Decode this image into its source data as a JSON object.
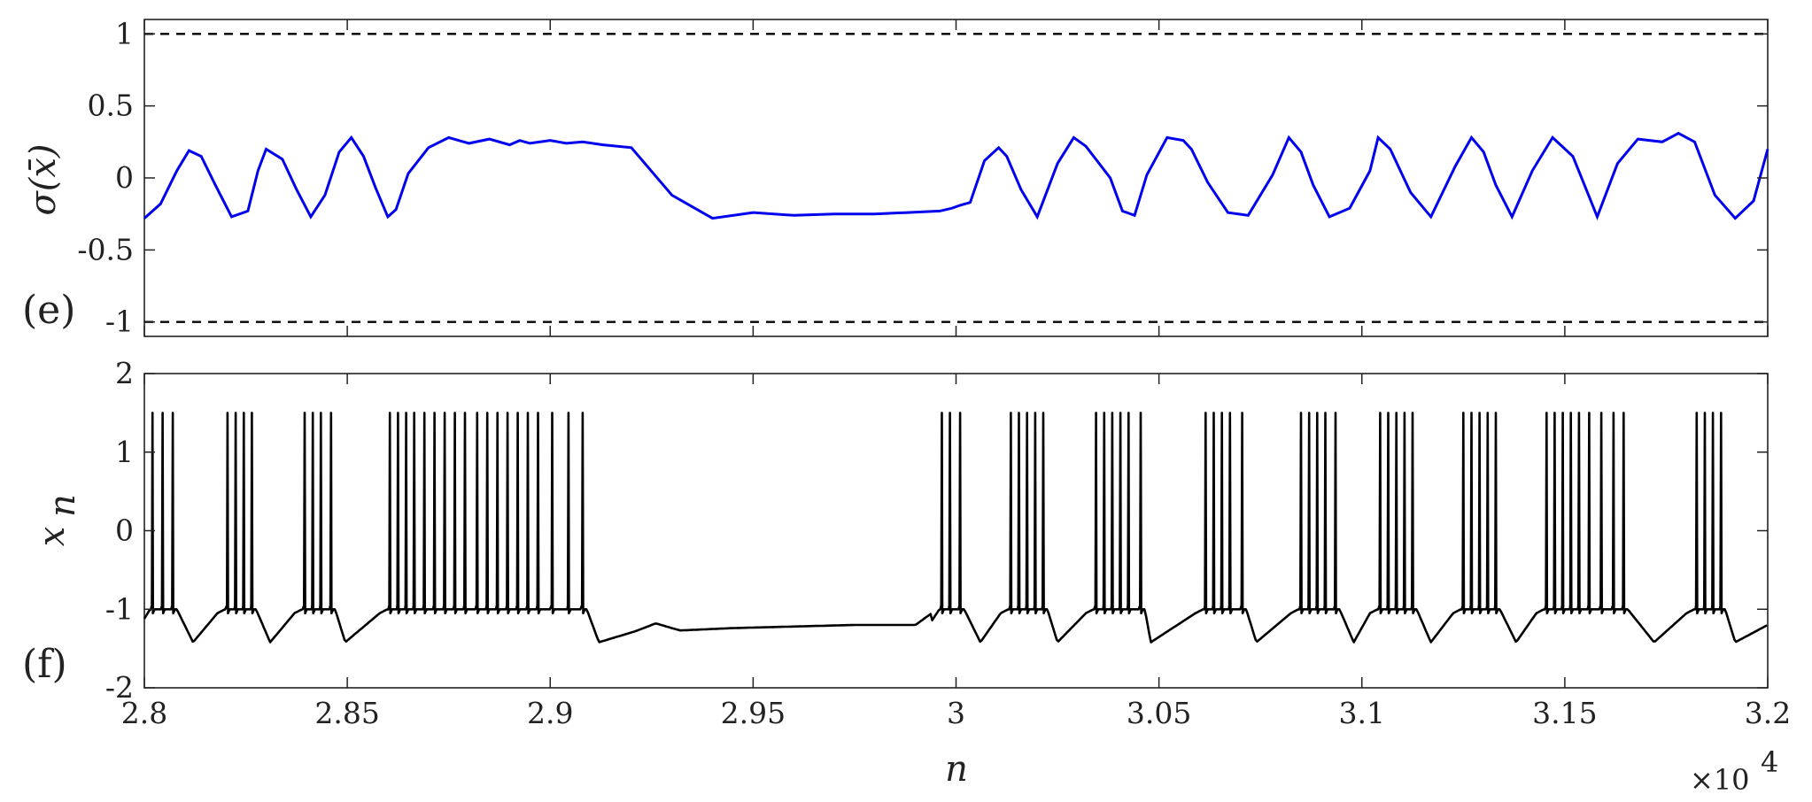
{
  "chart_data": [
    {
      "type": "line",
      "panel_label": "(e)",
      "ylabel": "σ(x̄)",
      "xlim": [
        28000,
        32000
      ],
      "ylim": [
        -1.1,
        1.1
      ],
      "yticks": [
        1,
        0.5,
        0,
        -0.5,
        -1
      ],
      "ytick_labels": [
        "1",
        "0.5",
        "0",
        "-0.5",
        "-1"
      ],
      "grid": false,
      "reference_lines": [
        {
          "y": 1,
          "style": "dashed",
          "color": "#000000"
        },
        {
          "y": -1,
          "style": "dashed",
          "color": "#000000"
        }
      ],
      "series": [
        {
          "color": "#0000ee",
          "x": [
            28000,
            28040,
            28080,
            28110,
            28140,
            28175,
            28215,
            28255,
            28280,
            28300,
            28340,
            28375,
            28410,
            28445,
            28480,
            28510,
            28540,
            28570,
            28600,
            28620,
            28650,
            28700,
            28750,
            28800,
            28850,
            28900,
            28925,
            28950,
            29000,
            29040,
            29080,
            29130,
            29200,
            29300,
            29400,
            29500,
            29600,
            29700,
            29800,
            29880,
            29960,
            29975,
            29990,
            30010,
            30035,
            30070,
            30105,
            30125,
            30160,
            30200,
            30250,
            30290,
            30320,
            30380,
            30410,
            30440,
            30470,
            30520,
            30560,
            30580,
            30620,
            30670,
            30720,
            30780,
            30820,
            30850,
            30880,
            30920,
            30970,
            31020,
            31040,
            31070,
            31120,
            31170,
            31230,
            31270,
            31300,
            31330,
            31370,
            31420,
            31470,
            31520,
            31550,
            31580,
            31630,
            31680,
            31740,
            31780,
            31820,
            31870,
            31920,
            31965,
            32000
          ],
          "y": [
            -0.28,
            -0.18,
            0.05,
            0.19,
            0.15,
            -0.05,
            -0.27,
            -0.23,
            0.05,
            0.2,
            0.13,
            -0.08,
            -0.27,
            -0.12,
            0.18,
            0.28,
            0.15,
            -0.07,
            -0.27,
            -0.22,
            0.03,
            0.21,
            0.28,
            0.24,
            0.27,
            0.23,
            0.26,
            0.24,
            0.26,
            0.24,
            0.25,
            0.23,
            0.21,
            -0.12,
            -0.28,
            -0.24,
            -0.26,
            -0.25,
            -0.25,
            -0.24,
            -0.23,
            -0.22,
            -0.21,
            -0.19,
            -0.17,
            0.12,
            0.21,
            0.15,
            -0.08,
            -0.27,
            0.1,
            0.28,
            0.22,
            0.0,
            -0.23,
            -0.26,
            0.02,
            0.28,
            0.26,
            0.2,
            -0.03,
            -0.24,
            -0.26,
            0.02,
            0.28,
            0.18,
            -0.05,
            -0.27,
            -0.21,
            0.05,
            0.28,
            0.2,
            -0.1,
            -0.27,
            0.08,
            0.28,
            0.18,
            -0.05,
            -0.27,
            0.05,
            0.28,
            0.15,
            -0.06,
            -0.27,
            0.1,
            0.27,
            0.25,
            0.31,
            0.25,
            -0.12,
            -0.28,
            -0.16,
            0.2
          ]
        }
      ]
    },
    {
      "type": "line",
      "panel_label": "(f)",
      "ylabel": "x_n",
      "ylabel_display": "x",
      "ylabel_subscript": "n",
      "xlabel": "n",
      "xlim": [
        28000,
        32000
      ],
      "ylim": [
        -2,
        2
      ],
      "yticks": [
        2,
        1,
        0,
        -1,
        -2
      ],
      "ytick_labels": [
        "2",
        "1",
        "0",
        "-1",
        "-2"
      ],
      "xticks": [
        28000,
        28500,
        29000,
        29500,
        30000,
        30500,
        31000,
        31500,
        32000
      ],
      "xtick_labels": [
        "2.8",
        "2.85",
        "2.9",
        "2.95",
        "3",
        "3.05",
        "3.1",
        "3.15",
        "3.2"
      ],
      "x_exponent_base": "×10",
      "x_exponent_power": "4",
      "grid": false,
      "spike_peak": 1.5,
      "spike_base": -1.0,
      "bursts": [
        [
          28020,
          28045,
          28070
        ],
        [
          28205,
          28225,
          28245,
          28265
        ],
        [
          28395,
          28415,
          28435,
          28460
        ],
        [
          28605,
          28625,
          28645,
          28665,
          28690,
          28715,
          28740,
          28765,
          28790,
          28820,
          28845,
          28870,
          28895,
          28920,
          28945,
          28970,
          29005,
          29045,
          29080
        ]
      ],
      "bursts_late": [
        [
          29965,
          29985,
          30010
        ],
        [
          30135,
          30155,
          30175,
          30195,
          30215
        ],
        [
          30345,
          30365,
          30385,
          30405,
          30425,
          30455
        ],
        [
          30615,
          30635,
          30655,
          30675,
          30705
        ],
        [
          30850,
          30870,
          30890,
          30910,
          30935
        ],
        [
          31045,
          31065,
          31085,
          31105,
          31125
        ],
        [
          31250,
          31270,
          31290,
          31310,
          31330
        ],
        [
          31455,
          31475,
          31495,
          31515,
          31535,
          31560,
          31590,
          31620,
          31645
        ],
        [
          31825,
          31845,
          31865,
          31885
        ]
      ],
      "troughs": [
        [
          28120,
          -1.42
        ],
        [
          28310,
          -1.42
        ],
        [
          28495,
          -1.42
        ],
        [
          29120,
          -1.42
        ],
        [
          29210,
          -1.28
        ],
        [
          29260,
          -1.18
        ],
        [
          29320,
          -1.27
        ],
        [
          29450,
          -1.24
        ],
        [
          29900,
          -1.2
        ],
        [
          30060,
          -1.42
        ],
        [
          30250,
          -1.42
        ],
        [
          30480,
          -1.42
        ],
        [
          30740,
          -1.42
        ],
        [
          30980,
          -1.42
        ],
        [
          31170,
          -1.42
        ],
        [
          31380,
          -1.42
        ],
        [
          31720,
          -1.42
        ],
        [
          31920,
          -1.42
        ]
      ],
      "line_color": "#000000"
    }
  ]
}
